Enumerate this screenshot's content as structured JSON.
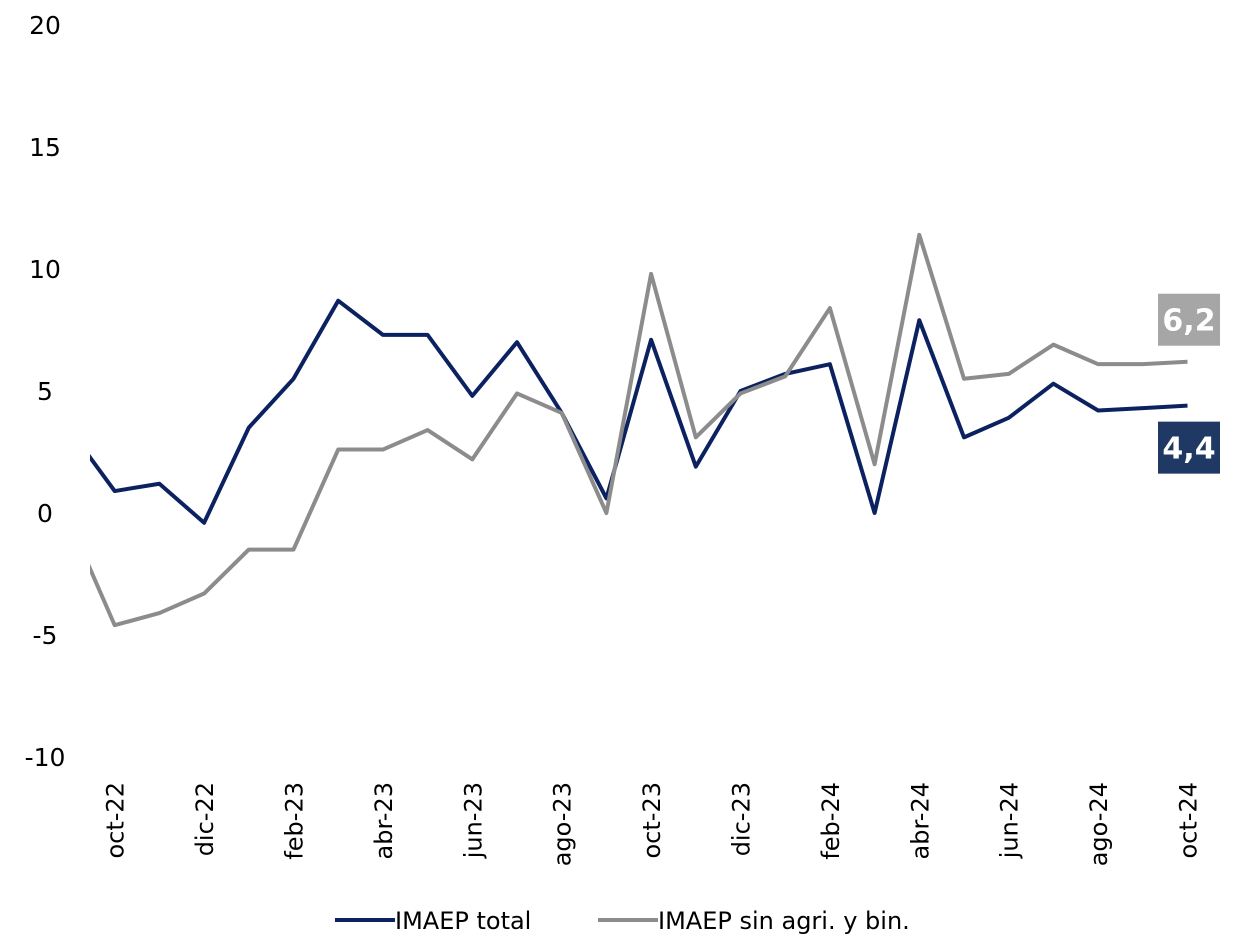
{
  "chart_data": {
    "type": "line",
    "categories": [
      null,
      "oct-22",
      null,
      "dic-22",
      null,
      "feb-23",
      null,
      "abr-23",
      null,
      "jun-23",
      null,
      "ago-23",
      null,
      "oct-23",
      null,
      "dic-23",
      null,
      "feb-24",
      null,
      "abr-24",
      null,
      "jun-24",
      null,
      "ago-24",
      null,
      "oct-24"
    ],
    "series": [
      {
        "name": "IMAEP total",
        "color": "#0b2160",
        "values": [
          3.4,
          0.9,
          1.2,
          -0.4,
          3.5,
          5.5,
          8.7,
          7.3,
          7.3,
          4.8,
          7.0,
          4.1,
          0.6,
          7.1,
          1.9,
          5.0,
          5.7,
          6.1,
          0.0,
          7.9,
          3.1,
          3.9,
          5.3,
          4.2,
          4.3,
          4.4
        ],
        "value_labels": [
          null,
          null,
          null,
          null,
          null,
          null,
          null,
          null,
          null,
          null,
          null,
          null,
          null,
          null,
          null,
          null,
          null,
          null,
          null,
          null,
          null,
          null,
          null,
          null,
          null,
          "4,4"
        ],
        "label_color": "#1f3864"
      },
      {
        "name": "IMAEP sin agri. y bin.",
        "color": "#8c8c8c",
        "values": [
          -0.4,
          -4.6,
          -4.1,
          -3.3,
          -1.5,
          -1.5,
          2.6,
          2.6,
          3.4,
          2.2,
          4.9,
          4.1,
          0.0,
          9.8,
          3.1,
          4.9,
          5.6,
          8.4,
          2.0,
          11.4,
          5.5,
          5.7,
          6.9,
          6.1,
          6.1,
          6.2
        ],
        "value_labels": [
          null,
          null,
          null,
          null,
          null,
          null,
          null,
          null,
          null,
          null,
          null,
          null,
          null,
          null,
          null,
          null,
          null,
          null,
          null,
          null,
          null,
          null,
          null,
          null,
          null,
          "6,2"
        ],
        "label_color": "#a6a6a6"
      }
    ],
    "ylim": [
      -10,
      20
    ],
    "yticks": [
      -10,
      -5,
      0,
      5,
      10,
      15,
      20
    ],
    "grid": false,
    "legend": "bottom"
  }
}
